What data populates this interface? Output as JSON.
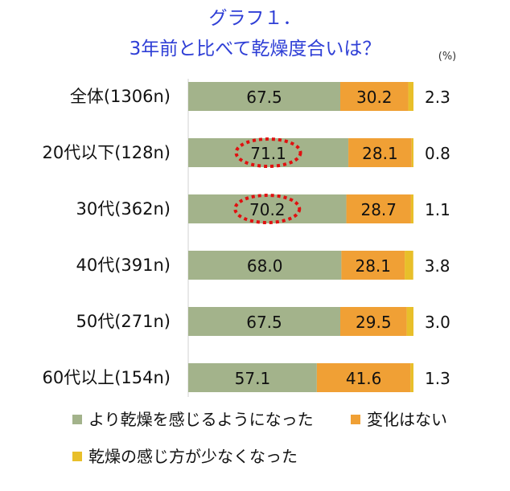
{
  "chart_data": {
    "type": "bar",
    "orientation": "horizontal",
    "stacked": true,
    "title": "グラフ１．",
    "subtitle": "3年前と比べて乾燥度合いは？",
    "unit": "(%)",
    "categories": [
      "全体(1306n)",
      "20代以下(128n)",
      "30代(362n)",
      "40代(391n)",
      "50代(271n)",
      "60代以上(154n)"
    ],
    "series": [
      {
        "name": "より乾燥を感じるようになった",
        "color": "#a3b38b",
        "values": [
          67.5,
          71.1,
          70.2,
          68.0,
          67.5,
          57.1
        ]
      },
      {
        "name": "変化はない",
        "color": "#f0a035",
        "values": [
          30.2,
          28.1,
          28.7,
          28.1,
          29.5,
          41.6
        ]
      },
      {
        "name": "乾燥の感じ方が少なくなった",
        "color": "#e8bf2a",
        "values": [
          2.3,
          0.8,
          1.1,
          3.8,
          3.0,
          1.3
        ]
      }
    ],
    "value_labels": [
      [
        "67.5",
        "30.2",
        "2.3"
      ],
      [
        "71.1",
        "28.1",
        "0.8"
      ],
      [
        "70.2",
        "28.7",
        "1.1"
      ],
      [
        "68.0",
        "28.1",
        "3.8"
      ],
      [
        "67.5",
        "29.5",
        "3.0"
      ],
      [
        "57.1",
        "41.6",
        "1.3"
      ]
    ],
    "highlighted": [
      {
        "category_index": 1,
        "series_index": 0
      },
      {
        "category_index": 2,
        "series_index": 0
      }
    ],
    "highlight_color": "#e01010",
    "xlim": [
      0,
      100
    ],
    "grid": false,
    "legend_position": "bottom"
  }
}
